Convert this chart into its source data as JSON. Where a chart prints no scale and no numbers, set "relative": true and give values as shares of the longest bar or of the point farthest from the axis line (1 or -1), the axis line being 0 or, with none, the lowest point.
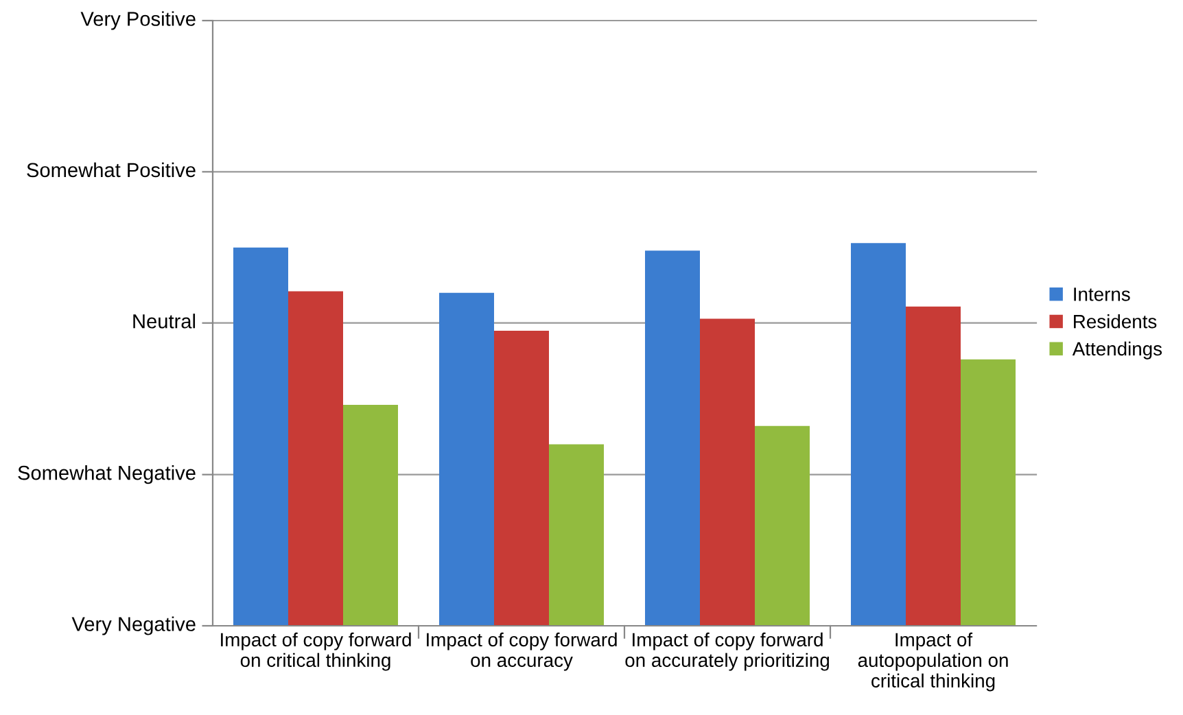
{
  "chart_data": {
    "type": "bar",
    "relative": true,
    "categories": [
      "Impact of copy forward\non critical thinking",
      "Impact of copy forward\non accuracy",
      "Impact of copy forward\non accurately prioritizing",
      "Impact of\nautopopulation on\ncritical thinking"
    ],
    "series": [
      {
        "name": "Interns",
        "color": "#3b7dd0",
        "values": [
          0.988,
          0.87,
          0.98,
          1
        ]
      },
      {
        "name": "Residents",
        "color": "#c83b36",
        "values": [
          0.874,
          0.771,
          0.802,
          0.834
        ]
      },
      {
        "name": "Attendings",
        "color": "#92bb3f",
        "values": [
          0.577,
          0.474,
          0.522,
          0.696
        ]
      }
    ],
    "ref_lines": [
      {
        "axis": "y",
        "value": 0,
        "label": "Very Negative",
        "color": "#999999"
      },
      {
        "axis": "y",
        "value": 0.395,
        "label": "Somewhat Negative",
        "color": "#999999"
      },
      {
        "axis": "y",
        "value": 0.791,
        "label": "Neutral",
        "color": "#999999"
      },
      {
        "axis": "y",
        "value": 1.186,
        "label": "Somewhat Positive",
        "color": "#999999"
      },
      {
        "axis": "y",
        "value": 1.581,
        "label": "Very Positive",
        "color": "#999999"
      }
    ],
    "legend": "right"
  }
}
